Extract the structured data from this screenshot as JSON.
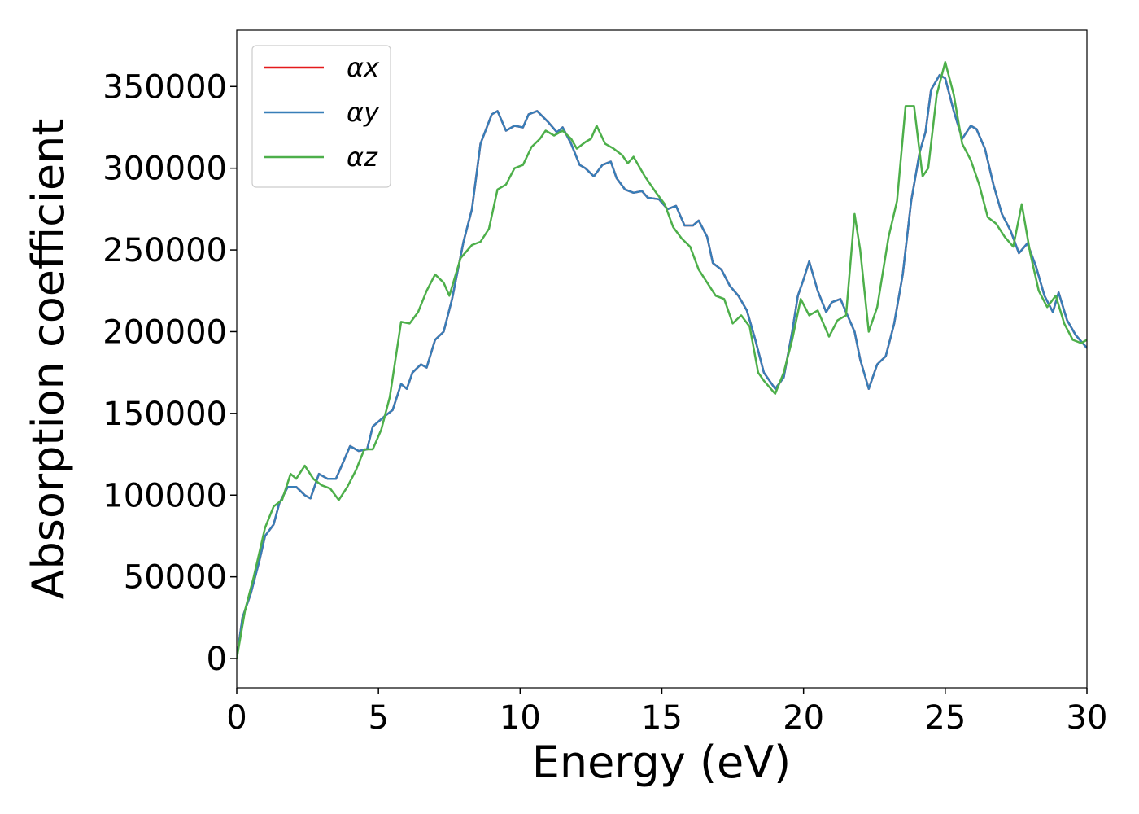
{
  "chart_data": {
    "type": "line",
    "xlabel": "Energy (eV)",
    "ylabel": "Absorption coefficient",
    "xlim": [
      0,
      30
    ],
    "xticks": [
      0,
      5,
      10,
      15,
      20,
      25,
      30
    ],
    "ylim": [
      -17900,
      384500
    ],
    "yticks": [
      0,
      50000,
      100000,
      150000,
      200000,
      250000,
      300000,
      350000
    ],
    "legend": "upper left",
    "series": [
      {
        "name": "αx",
        "color": "#e41a1c",
        "x": [
          0,
          0.2,
          0.5,
          0.8,
          1.0,
          1.3,
          1.5,
          1.8,
          2.1,
          2.4,
          2.6,
          2.9,
          3.2,
          3.5,
          3.8,
          4.0,
          4.3,
          4.6,
          4.8,
          5.2,
          5.5,
          5.8,
          6.0,
          6.2,
          6.5,
          6.7,
          7.0,
          7.3,
          7.6,
          8.0,
          8.3,
          8.6,
          9.0,
          9.2,
          9.5,
          9.8,
          10.1,
          10.3,
          10.6,
          11.0,
          11.3,
          11.5,
          11.8,
          12.1,
          12.3,
          12.6,
          12.9,
          13.2,
          13.4,
          13.7,
          14.0,
          14.3,
          14.5,
          14.9,
          15.2,
          15.5,
          15.8,
          16.1,
          16.3,
          16.6,
          16.8,
          17.1,
          17.4,
          17.7,
          18.0,
          18.3,
          18.6,
          19.0,
          19.3,
          19.6,
          19.8,
          20.0,
          20.2,
          20.5,
          20.8,
          21.0,
          21.3,
          21.5,
          21.8,
          22.0,
          22.3,
          22.6,
          22.9,
          23.2,
          23.5,
          23.8,
          24.1,
          24.3,
          24.5,
          24.8,
          25.0,
          25.3,
          25.6,
          25.9,
          26.1,
          26.4,
          26.7,
          27.0,
          27.3,
          27.6,
          27.9,
          28.2,
          28.5,
          28.8,
          29.0,
          29.3,
          29.6,
          30
        ],
        "values": [
          0,
          25000,
          40000,
          60000,
          75000,
          82000,
          95000,
          105000,
          105000,
          100000,
          98000,
          113000,
          110000,
          110000,
          122000,
          130000,
          127000,
          128000,
          142000,
          148000,
          152000,
          168000,
          165000,
          175000,
          180000,
          178000,
          195000,
          200000,
          220000,
          255000,
          275000,
          315000,
          333000,
          335000,
          323000,
          326000,
          325000,
          333000,
          335000,
          328000,
          322000,
          325000,
          315000,
          302000,
          300000,
          295000,
          302000,
          304000,
          294000,
          287000,
          285000,
          286000,
          282000,
          281000,
          275000,
          277000,
          265000,
          265000,
          268000,
          258000,
          242000,
          238000,
          228000,
          222000,
          213000,
          195000,
          175000,
          165000,
          172000,
          200000,
          222000,
          232000,
          243000,
          225000,
          212000,
          218000,
          220000,
          212000,
          200000,
          183000,
          165000,
          180000,
          185000,
          205000,
          235000,
          280000,
          310000,
          322000,
          348000,
          357000,
          355000,
          335000,
          318000,
          326000,
          324000,
          312000,
          290000,
          272000,
          262000,
          248000,
          254000,
          240000,
          222000,
          212000,
          224000,
          207000,
          198000,
          190000
        ]
      },
      {
        "name": "αy",
        "color": "#377eb8",
        "x": [
          0,
          0.2,
          0.5,
          0.8,
          1.0,
          1.3,
          1.5,
          1.8,
          2.1,
          2.4,
          2.6,
          2.9,
          3.2,
          3.5,
          3.8,
          4.0,
          4.3,
          4.6,
          4.8,
          5.2,
          5.5,
          5.8,
          6.0,
          6.2,
          6.5,
          6.7,
          7.0,
          7.3,
          7.6,
          8.0,
          8.3,
          8.6,
          9.0,
          9.2,
          9.5,
          9.8,
          10.1,
          10.3,
          10.6,
          11.0,
          11.3,
          11.5,
          11.8,
          12.1,
          12.3,
          12.6,
          12.9,
          13.2,
          13.4,
          13.7,
          14.0,
          14.3,
          14.5,
          14.9,
          15.2,
          15.5,
          15.8,
          16.1,
          16.3,
          16.6,
          16.8,
          17.1,
          17.4,
          17.7,
          18.0,
          18.3,
          18.6,
          19.0,
          19.3,
          19.6,
          19.8,
          20.0,
          20.2,
          20.5,
          20.8,
          21.0,
          21.3,
          21.5,
          21.8,
          22.0,
          22.3,
          22.6,
          22.9,
          23.2,
          23.5,
          23.8,
          24.1,
          24.3,
          24.5,
          24.8,
          25.0,
          25.3,
          25.6,
          25.9,
          26.1,
          26.4,
          26.7,
          27.0,
          27.3,
          27.6,
          27.9,
          28.2,
          28.5,
          28.8,
          29.0,
          29.3,
          29.6,
          30
        ],
        "values": [
          0,
          25000,
          40000,
          60000,
          75000,
          82000,
          95000,
          105000,
          105000,
          100000,
          98000,
          113000,
          110000,
          110000,
          122000,
          130000,
          127000,
          128000,
          142000,
          148000,
          152000,
          168000,
          165000,
          175000,
          180000,
          178000,
          195000,
          200000,
          220000,
          255000,
          275000,
          315000,
          333000,
          335000,
          323000,
          326000,
          325000,
          333000,
          335000,
          328000,
          322000,
          325000,
          315000,
          302000,
          300000,
          295000,
          302000,
          304000,
          294000,
          287000,
          285000,
          286000,
          282000,
          281000,
          275000,
          277000,
          265000,
          265000,
          268000,
          258000,
          242000,
          238000,
          228000,
          222000,
          213000,
          195000,
          175000,
          165000,
          172000,
          200000,
          222000,
          232000,
          243000,
          225000,
          212000,
          218000,
          220000,
          212000,
          200000,
          183000,
          165000,
          180000,
          185000,
          205000,
          235000,
          280000,
          310000,
          322000,
          348000,
          357000,
          355000,
          335000,
          318000,
          326000,
          324000,
          312000,
          290000,
          272000,
          262000,
          248000,
          254000,
          240000,
          222000,
          212000,
          224000,
          207000,
          198000,
          190000
        ]
      },
      {
        "name": "αz",
        "color": "#4daf4a",
        "x": [
          0,
          0.3,
          0.6,
          1.0,
          1.3,
          1.6,
          1.9,
          2.1,
          2.4,
          2.7,
          3.0,
          3.3,
          3.6,
          3.9,
          4.2,
          4.5,
          4.8,
          5.1,
          5.4,
          5.8,
          6.1,
          6.4,
          6.7,
          7.0,
          7.3,
          7.5,
          7.9,
          8.3,
          8.6,
          8.9,
          9.2,
          9.5,
          9.8,
          10.1,
          10.4,
          10.7,
          10.9,
          11.2,
          11.5,
          11.8,
          12.0,
          12.3,
          12.5,
          12.7,
          13.0,
          13.3,
          13.6,
          13.8,
          14.0,
          14.4,
          14.8,
          15.1,
          15.4,
          15.7,
          16.0,
          16.3,
          16.6,
          16.9,
          17.2,
          17.5,
          17.8,
          18.1,
          18.4,
          18.6,
          19.0,
          19.3,
          19.6,
          19.9,
          20.2,
          20.5,
          20.9,
          21.2,
          21.5,
          21.8,
          22.0,
          22.3,
          22.6,
          23.0,
          23.3,
          23.6,
          23.9,
          24.2,
          24.4,
          24.7,
          25.0,
          25.3,
          25.6,
          25.9,
          26.2,
          26.5,
          26.8,
          27.1,
          27.4,
          27.7,
          28.0,
          28.3,
          28.6,
          28.9,
          29.2,
          29.5,
          29.8,
          30
        ],
        "values": [
          0,
          30000,
          50000,
          80000,
          93000,
          97000,
          113000,
          110000,
          118000,
          110000,
          106000,
          104000,
          97000,
          105000,
          115000,
          128000,
          128000,
          140000,
          160000,
          206000,
          205000,
          212000,
          225000,
          235000,
          230000,
          222000,
          245000,
          253000,
          255000,
          263000,
          287000,
          290000,
          300000,
          302000,
          313000,
          318000,
          323000,
          320000,
          323000,
          318000,
          312000,
          316000,
          318000,
          326000,
          315000,
          312000,
          308000,
          303000,
          307000,
          295000,
          285000,
          278000,
          264000,
          257000,
          252000,
          238000,
          230000,
          222000,
          220000,
          205000,
          210000,
          203000,
          175000,
          170000,
          162000,
          175000,
          195000,
          220000,
          210000,
          213000,
          197000,
          207000,
          210000,
          272000,
          250000,
          200000,
          215000,
          258000,
          280000,
          338000,
          338000,
          295000,
          300000,
          345000,
          365000,
          345000,
          315000,
          305000,
          290000,
          270000,
          266000,
          258000,
          252000,
          278000,
          248000,
          225000,
          215000,
          222000,
          205000,
          195000,
          193000,
          195000
        ]
      }
    ]
  }
}
